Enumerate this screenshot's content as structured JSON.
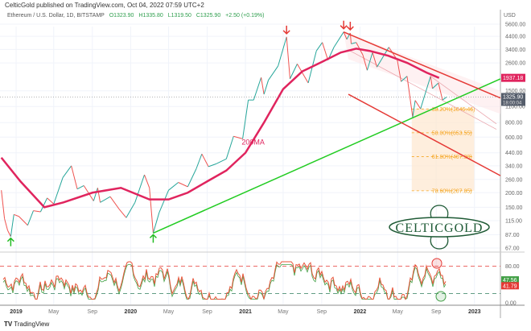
{
  "header": {
    "published": "CelticGold published on TradingView.com, Oct 04, 2022 07:59 UTC+2",
    "symbol": "Ethereum / U.S. Dollar, 1D, BITSTAMP",
    "open": "O1323.90",
    "high": "H1335.80",
    "low": "L1319.50",
    "close": "C1325.90",
    "change": "+2.50 (+0.19%)"
  },
  "footer": {
    "brand": "TradingView"
  },
  "logo": {
    "text": "CELTICGOLD"
  },
  "chart_data": {
    "type": "candlestick-line",
    "yscale": "log",
    "currency": "USD",
    "yticks": [
      "5600.00",
      "4400.00",
      "3400.00",
      "2600.00",
      "1500.00",
      "1100.00",
      "800.00",
      "600.00",
      "440.00",
      "340.00",
      "260.00",
      "200.00",
      "150.00",
      "115.00",
      "87.00",
      "67.00"
    ],
    "xticks": [
      [
        "2019-01-01",
        "2019",
        true
      ],
      [
        "2019-05-01",
        "May",
        false
      ],
      [
        "2019-09-01",
        "Sep",
        false
      ],
      [
        "2020-01-01",
        "2020",
        true
      ],
      [
        "2020-05-01",
        "May",
        false
      ],
      [
        "2020-09-01",
        "Sep",
        false
      ],
      [
        "2021-01-01",
        "2021",
        true
      ],
      [
        "2021-05-01",
        "May",
        false
      ],
      [
        "2021-09-01",
        "Sep",
        false
      ],
      [
        "2022-01-01",
        "2022",
        true
      ],
      [
        "2022-05-01",
        "May",
        false
      ],
      [
        "2022-09-01",
        "Sep",
        false
      ],
      [
        "2023-01-01",
        "2023",
        true
      ]
    ],
    "price": [
      [
        "2018-11-15",
        210
      ],
      [
        "2018-11-25",
        120
      ],
      [
        "2018-12-05",
        95
      ],
      [
        "2018-12-15",
        84
      ],
      [
        "2018-12-25",
        130
      ],
      [
        "2019-01-10",
        125
      ],
      [
        "2019-02-07",
        105
      ],
      [
        "2019-02-25",
        140
      ],
      [
        "2019-03-20",
        137
      ],
      [
        "2019-04-10",
        180
      ],
      [
        "2019-05-01",
        160
      ],
      [
        "2019-05-30",
        270
      ],
      [
        "2019-06-26",
        340
      ],
      [
        "2019-07-15",
        215
      ],
      [
        "2019-08-05",
        230
      ],
      [
        "2019-09-05",
        170
      ],
      [
        "2019-09-18",
        220
      ],
      [
        "2019-09-26",
        165
      ],
      [
        "2019-10-28",
        185
      ],
      [
        "2019-11-25",
        145
      ],
      [
        "2019-12-18",
        122
      ],
      [
        "2020-01-15",
        165
      ],
      [
        "2020-02-14",
        285
      ],
      [
        "2020-03-01",
        220
      ],
      [
        "2020-03-13",
        90
      ],
      [
        "2020-04-01",
        135
      ],
      [
        "2020-05-01",
        210
      ],
      [
        "2020-06-01",
        245
      ],
      [
        "2020-07-01",
        225
      ],
      [
        "2020-07-28",
        320
      ],
      [
        "2020-08-15",
        430
      ],
      [
        "2020-09-05",
        335
      ],
      [
        "2020-10-01",
        355
      ],
      [
        "2020-11-01",
        390
      ],
      [
        "2020-11-24",
        610
      ],
      [
        "2020-12-23",
        580
      ],
      [
        "2021-01-10",
        1250
      ],
      [
        "2021-01-27",
        1250
      ],
      [
        "2021-02-20",
        1950
      ],
      [
        "2021-03-01",
        1400
      ],
      [
        "2021-03-15",
        1850
      ],
      [
        "2021-04-15",
        2450
      ],
      [
        "2021-05-12",
        4350
      ],
      [
        "2021-05-23",
        1900
      ],
      [
        "2021-06-15",
        2550
      ],
      [
        "2021-07-20",
        1750
      ],
      [
        "2021-08-15",
        3300
      ],
      [
        "2021-09-03",
        3900
      ],
      [
        "2021-09-21",
        2750
      ],
      [
        "2021-10-10",
        3550
      ],
      [
        "2021-11-10",
        4800
      ],
      [
        "2021-11-20",
        4150
      ],
      [
        "2021-12-01",
        4700
      ],
      [
        "2021-12-04",
        3800
      ],
      [
        "2021-12-20",
        3900
      ],
      [
        "2022-01-10",
        3050
      ],
      [
        "2022-01-24",
        2250
      ],
      [
        "2022-02-10",
        3200
      ],
      [
        "2022-02-24",
        2400
      ],
      [
        "2022-04-03",
        3550
      ],
      [
        "2022-04-30",
        2750
      ],
      [
        "2022-05-12",
        1800
      ],
      [
        "2022-05-31",
        2000
      ],
      [
        "2022-06-18",
        890
      ],
      [
        "2022-06-26",
        1240
      ],
      [
        "2022-07-13",
        1050
      ],
      [
        "2022-08-14",
        2000
      ],
      [
        "2022-08-20",
        1570
      ],
      [
        "2022-09-08",
        1750
      ],
      [
        "2022-09-21",
        1250
      ],
      [
        "2022-10-04",
        1325.9
      ]
    ],
    "ma200": {
      "label": "200MA",
      "color": "#e0245e",
      "last_label": "1937.18",
      "values": [
        [
          "2018-11-15",
          400
        ],
        [
          "2019-01-15",
          250
        ],
        [
          "2019-04-01",
          150
        ],
        [
          "2019-06-01",
          165
        ],
        [
          "2019-09-01",
          200
        ],
        [
          "2019-12-01",
          220
        ],
        [
          "2020-03-01",
          175
        ],
        [
          "2020-05-01",
          175
        ],
        [
          "2020-07-01",
          200
        ],
        [
          "2020-09-01",
          250
        ],
        [
          "2020-11-01",
          310
        ],
        [
          "2021-01-01",
          440
        ],
        [
          "2021-03-01",
          800
        ],
        [
          "2021-05-01",
          1550
        ],
        [
          "2021-07-01",
          2200
        ],
        [
          "2021-09-01",
          2650
        ],
        [
          "2021-11-01",
          3200
        ],
        [
          "2021-12-20",
          3450
        ],
        [
          "2022-02-01",
          3300
        ],
        [
          "2022-04-01",
          3000
        ],
        [
          "2022-06-01",
          2600
        ],
        [
          "2022-08-01",
          2150
        ],
        [
          "2022-09-10",
          1937.18
        ]
      ]
    },
    "last_price": {
      "value": "1325.90",
      "countdown": "18:00:04"
    },
    "trendlines": [
      {
        "color": "#22cc22",
        "from": [
          "2020-03-13",
          90
        ],
        "to": [
          "2023-05-01",
          1900
        ]
      },
      {
        "color": "#e53935",
        "from": [
          "2021-11-10",
          4800
        ],
        "to": [
          "2023-05-01",
          1300
        ]
      },
      {
        "color": "#e53935",
        "from": [
          "2021-11-25",
          1400
        ],
        "to": [
          "2023-05-01",
          280
        ]
      }
    ],
    "arrows": [
      {
        "dir": "down",
        "color": "#e53935",
        "at": [
          "2021-05-12",
          4350
        ]
      },
      {
        "dir": "down",
        "color": "#e53935",
        "at": [
          "2021-11-10",
          4800
        ]
      },
      {
        "dir": "down",
        "color": "#e53935",
        "at": [
          "2021-12-01",
          4700
        ]
      },
      {
        "dir": "up",
        "color": "#22bb22",
        "at": [
          "2018-12-15",
          84
        ]
      },
      {
        "dir": "up",
        "color": "#22bb22",
        "at": [
          "2020-03-13",
          90
        ]
      }
    ],
    "fib": {
      "color": "#f5a623",
      "from": "2022-06-15",
      "to": "2022-12-31",
      "levels": [
        [
          "38.20%(1046.46)",
          1046.46
        ],
        [
          "50.00%(653.55)",
          653.55
        ],
        [
          "61.80%(407.38)",
          407.38
        ],
        [
          "78.60%(207.85)",
          207.85
        ]
      ]
    },
    "oscillator": {
      "levels": [
        80,
        20
      ],
      "ticks": [
        "80.00",
        "0.00"
      ],
      "values": [
        "47.56",
        "41.79"
      ],
      "colors": [
        "#43a047",
        "#e53935"
      ]
    }
  }
}
